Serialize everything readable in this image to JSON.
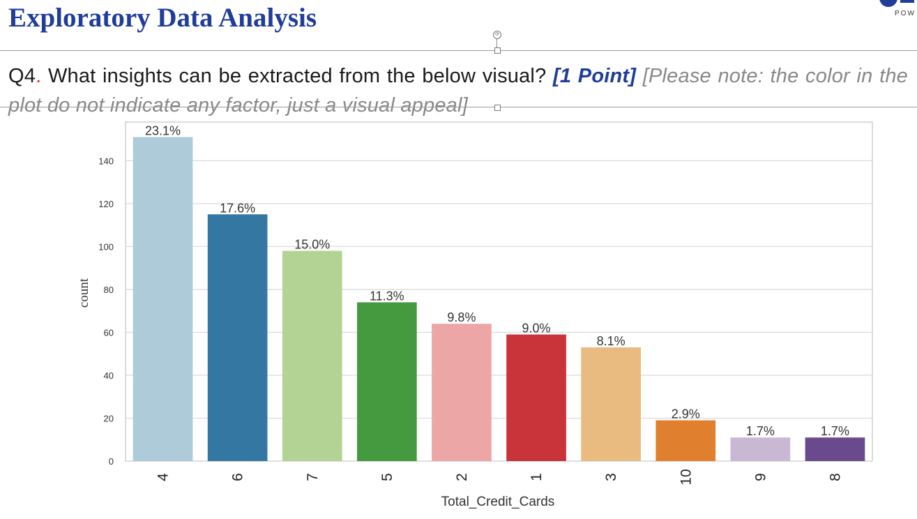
{
  "slide": {
    "title": "Exploratory Data Analysis",
    "logo_text": "POW"
  },
  "question": {
    "prefix": "Q4",
    "dot": ".",
    "text": " What insights can be extracted from the below visual? ",
    "points": "[1 Point]",
    "note": " [Please note: the color in the plot do not indicate any factor, just a visual appeal]"
  },
  "icons": {
    "rotate_handle": "rotate-handle-icon"
  },
  "chart_data": {
    "type": "bar",
    "categories": [
      "4",
      "6",
      "7",
      "5",
      "2",
      "1",
      "3",
      "10",
      "9",
      "8"
    ],
    "values": [
      151,
      115,
      98,
      74,
      64,
      59,
      53,
      19,
      11,
      11
    ],
    "data_labels": [
      "23.1%",
      "17.6%",
      "15.0%",
      "11.3%",
      "9.8%",
      "9.0%",
      "8.1%",
      "2.9%",
      "1.7%",
      "1.7%"
    ],
    "colors": [
      "#aecbda",
      "#3577a3",
      "#b2d394",
      "#459a3f",
      "#eca6a6",
      "#c8343a",
      "#eabb81",
      "#e0802e",
      "#c9b8d4",
      "#6a4a8c"
    ],
    "xlabel": "Total_Credit_Cards",
    "ylabel": "count",
    "yticks": [
      0,
      20,
      40,
      60,
      80,
      100,
      120,
      140
    ],
    "ylim": [
      0,
      158
    ],
    "grid": true
  }
}
